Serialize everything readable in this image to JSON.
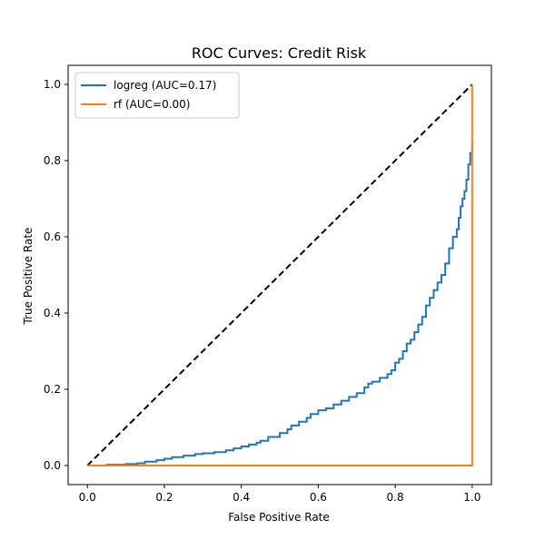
{
  "chart_data": {
    "type": "line",
    "title": "ROC Curves: Credit Risk",
    "xlabel": "False Positive Rate",
    "ylabel": "True Positive Rate",
    "xlim": [
      -0.05,
      1.05
    ],
    "ylim": [
      -0.05,
      1.05
    ],
    "xticks": [
      0.0,
      0.2,
      0.4,
      0.6,
      0.8,
      1.0
    ],
    "yticks": [
      0.0,
      0.2,
      0.4,
      0.6,
      0.8,
      1.0
    ],
    "xtick_labels": [
      "0.0",
      "0.2",
      "0.4",
      "0.6",
      "0.8",
      "1.0"
    ],
    "ytick_labels": [
      "0.0",
      "0.2",
      "0.4",
      "0.6",
      "0.8",
      "1.0"
    ],
    "grid": false,
    "legend_position": "upper-left",
    "series": [
      {
        "name": "logreg (AUC=0.17)",
        "color": "#1f77b4",
        "step": true,
        "x": [
          0.0,
          0.05,
          0.1,
          0.13,
          0.15,
          0.18,
          0.2,
          0.22,
          0.25,
          0.28,
          0.3,
          0.33,
          0.36,
          0.38,
          0.4,
          0.42,
          0.44,
          0.45,
          0.47,
          0.5,
          0.52,
          0.53,
          0.55,
          0.57,
          0.58,
          0.6,
          0.62,
          0.64,
          0.66,
          0.68,
          0.7,
          0.72,
          0.73,
          0.74,
          0.76,
          0.78,
          0.79,
          0.8,
          0.81,
          0.82,
          0.83,
          0.84,
          0.85,
          0.86,
          0.87,
          0.88,
          0.89,
          0.9,
          0.91,
          0.92,
          0.93,
          0.94,
          0.95,
          0.96,
          0.965,
          0.97,
          0.975,
          0.98,
          0.985,
          0.99,
          0.995,
          1.0
        ],
        "y": [
          0.0,
          0.002,
          0.004,
          0.006,
          0.01,
          0.014,
          0.018,
          0.022,
          0.026,
          0.03,
          0.032,
          0.035,
          0.04,
          0.045,
          0.05,
          0.055,
          0.06,
          0.065,
          0.075,
          0.085,
          0.095,
          0.105,
          0.115,
          0.125,
          0.135,
          0.145,
          0.15,
          0.16,
          0.17,
          0.18,
          0.19,
          0.205,
          0.215,
          0.22,
          0.23,
          0.24,
          0.25,
          0.27,
          0.28,
          0.3,
          0.32,
          0.33,
          0.35,
          0.37,
          0.39,
          0.42,
          0.44,
          0.46,
          0.48,
          0.5,
          0.53,
          0.57,
          0.6,
          0.62,
          0.65,
          0.68,
          0.7,
          0.72,
          0.75,
          0.79,
          0.82,
          0.85
        ]
      },
      {
        "name": "rf (AUC=0.00)",
        "color": "#ff7f0e",
        "step": false,
        "x": [
          0.0,
          1.0,
          1.0
        ],
        "y": [
          0.0,
          0.0,
          1.0
        ]
      }
    ],
    "reference_line": {
      "color": "#000000",
      "dashed": true,
      "x": [
        0.0,
        1.0
      ],
      "y": [
        0.0,
        1.0
      ]
    }
  }
}
